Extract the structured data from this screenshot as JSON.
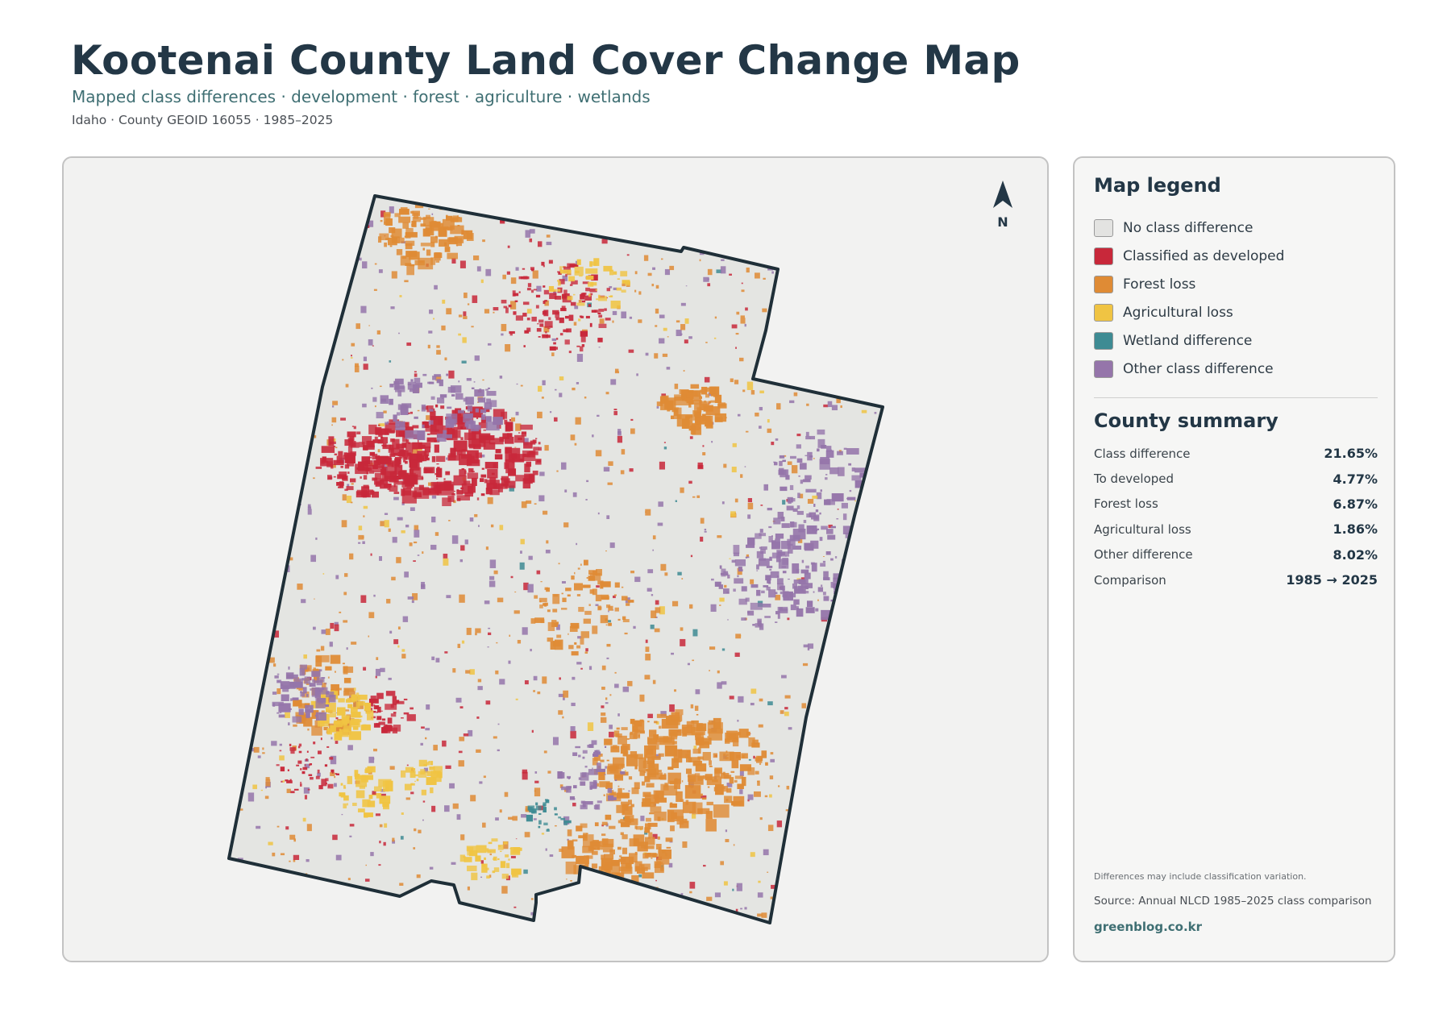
{
  "header": {
    "title": "Kootenai County Land Cover Change Map",
    "subtitle": "Mapped class differences · development · forest · agriculture · wetlands",
    "meta": "Idaho · County GEOID 16055 · 1985–2025"
  },
  "map": {
    "north_label": "N",
    "county_fill": "#e4e5e2",
    "outline_color": "#1f2f38"
  },
  "legend": {
    "title": "Map legend",
    "items": [
      {
        "label": "No class difference",
        "color": "#e3e3e1"
      },
      {
        "label": "Classified as developed",
        "color": "#c8283a"
      },
      {
        "label": "Forest loss",
        "color": "#df8b35"
      },
      {
        "label": "Agricultural loss",
        "color": "#f0c443"
      },
      {
        "label": "Wetland difference",
        "color": "#3e8b93"
      },
      {
        "label": "Other class difference",
        "color": "#9575aa"
      }
    ]
  },
  "summary": {
    "title": "County summary",
    "rows": [
      {
        "label": "Class difference",
        "value": "21.65%"
      },
      {
        "label": "To developed",
        "value": "4.77%"
      },
      {
        "label": "Forest loss",
        "value": "6.87%"
      },
      {
        "label": "Agricultural loss",
        "value": "1.86%"
      },
      {
        "label": "Other difference",
        "value": "8.02%"
      },
      {
        "label": "Comparison",
        "value": "1985 → 2025"
      }
    ]
  },
  "footer": {
    "note": "Differences may include classification variation.",
    "source": "Source: Annual NLCD 1985–2025 class comparison",
    "site": "greenblog.co.kr"
  }
}
